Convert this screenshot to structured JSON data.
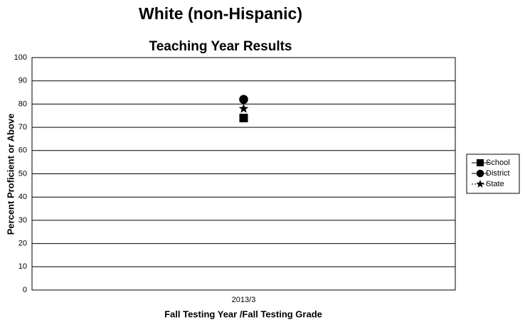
{
  "chart_data": {
    "type": "line",
    "title": "White (non-Hispanic)",
    "subtitle": "Teaching Year Results",
    "y_label": "Percent Proficient or Above",
    "x_label": "Fall Testing Year /Fall Testing Grade",
    "categories": [
      "2013/3"
    ],
    "series": [
      {
        "name": "School",
        "color": "#000000",
        "marker": "square",
        "values": [
          74
        ]
      },
      {
        "name": "District",
        "color": "#000000",
        "marker": "circle",
        "values": [
          82
        ]
      },
      {
        "name": "State",
        "color": "#000000",
        "marker": "star",
        "values": [
          78
        ]
      }
    ],
    "ylim": [
      0,
      100
    ],
    "yticks": [
      0,
      10,
      20,
      30,
      40,
      50,
      60,
      70,
      80,
      90,
      100
    ],
    "grid": true,
    "legend": "right"
  }
}
